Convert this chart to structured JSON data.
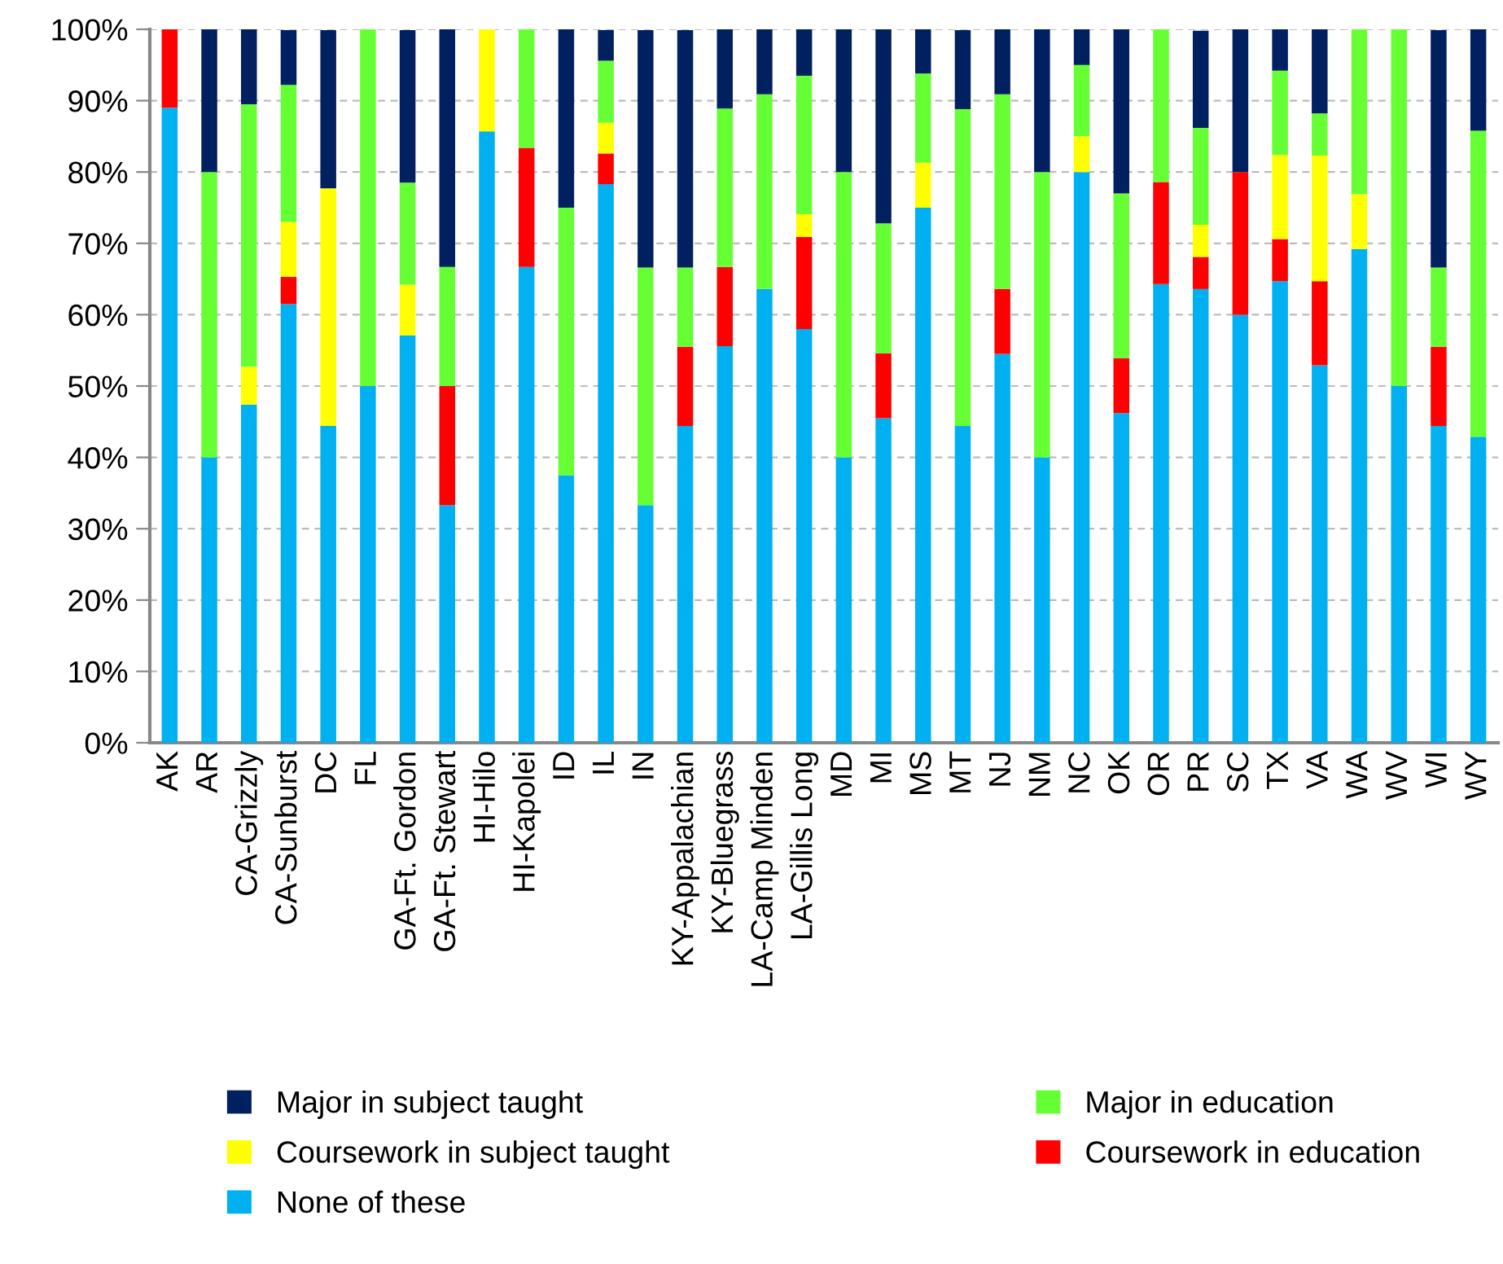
{
  "chart_data": {
    "type": "bar",
    "stacked": true,
    "categories": [
      "AK",
      "AR",
      "CA-Grizzly",
      "CA-Sunburst",
      "DC",
      "FL",
      "GA-Ft. Gordon",
      "GA-Ft. Stewart",
      "HI-Hilo",
      "HI-Kapolei",
      "ID",
      "IL",
      "IN",
      "KY-Appalachian",
      "KY-Bluegrass",
      "LA-Camp Minden",
      "LA-Gillis Long",
      "MD",
      "MI",
      "MS",
      "MT",
      "NJ",
      "NM",
      "NC",
      "OK",
      "OR",
      "PR",
      "SC",
      "TX",
      "VA",
      "WA",
      "WV",
      "WI",
      "WY"
    ],
    "series": [
      {
        "name": "None of these",
        "color": "#00b0f0",
        "values": [
          89,
          40,
          47.4,
          61.5,
          44.4,
          50,
          57.1,
          33.3,
          85.7,
          66.7,
          37.5,
          78.3,
          33.3,
          44.4,
          55.6,
          63.6,
          58,
          40,
          45.5,
          75,
          44.4,
          54.5,
          40,
          80,
          46.2,
          64.3,
          63.6,
          60,
          64.7,
          52.9,
          69.2,
          50,
          44.4,
          42.9
        ]
      },
      {
        "name": "Coursework in education",
        "color": "#ff0000",
        "values": [
          11,
          0,
          0,
          3.8,
          0,
          0,
          0,
          16.7,
          0,
          16.7,
          0,
          4.3,
          0,
          11.1,
          11.1,
          0,
          12.9,
          0,
          9.1,
          0,
          0,
          9.1,
          0,
          0,
          7.7,
          14.3,
          4.5,
          20,
          5.9,
          11.8,
          0,
          0,
          11.1,
          0
        ]
      },
      {
        "name": "Coursework in subject taught",
        "color": "#ffff00",
        "values": [
          0,
          0,
          5.3,
          7.7,
          33.3,
          0,
          7.1,
          0,
          14.3,
          0,
          0,
          4.3,
          0,
          0,
          0,
          0,
          3.2,
          0,
          0,
          6.3,
          0,
          0,
          0,
          5,
          0,
          0,
          4.5,
          0,
          11.8,
          17.6,
          7.7,
          0,
          0,
          0
        ]
      },
      {
        "name": "Major in education",
        "color": "#66ff33",
        "values": [
          0,
          40,
          36.8,
          19.2,
          0,
          50,
          14.3,
          16.7,
          0,
          16.7,
          37.5,
          8.7,
          33.3,
          11.1,
          22.2,
          27.3,
          19.4,
          40,
          18.2,
          12.5,
          44.4,
          27.3,
          40,
          10,
          23.1,
          21.4,
          13.6,
          0,
          11.8,
          5.9,
          23.1,
          50,
          11.1,
          42.9
        ]
      },
      {
        "name": "Major in subject taught",
        "color": "#002060",
        "values": [
          0,
          20,
          10.5,
          7.7,
          22.2,
          0,
          21.4,
          33.3,
          0,
          0,
          25,
          4.3,
          33.3,
          33.3,
          11.1,
          9.1,
          6.5,
          20,
          27.3,
          6.3,
          11.1,
          9.1,
          20,
          5,
          23.1,
          0,
          13.6,
          20,
          5.9,
          11.8,
          0,
          0,
          33.3,
          14.3
        ]
      }
    ],
    "ylim": [
      0,
      100
    ],
    "yticks": [
      {
        "value": 0,
        "label": "0%"
      },
      {
        "value": 10,
        "label": "10%"
      },
      {
        "value": 20,
        "label": "20%"
      },
      {
        "value": 30,
        "label": "30%"
      },
      {
        "value": 40,
        "label": "40%"
      },
      {
        "value": 50,
        "label": "50%"
      },
      {
        "value": 60,
        "label": "60%"
      },
      {
        "value": 70,
        "label": "70%"
      },
      {
        "value": 80,
        "label": "80%"
      },
      {
        "value": 90,
        "label": "90%"
      },
      {
        "value": 100,
        "label": "100%"
      }
    ],
    "grid": "y",
    "legend": "bottom"
  }
}
